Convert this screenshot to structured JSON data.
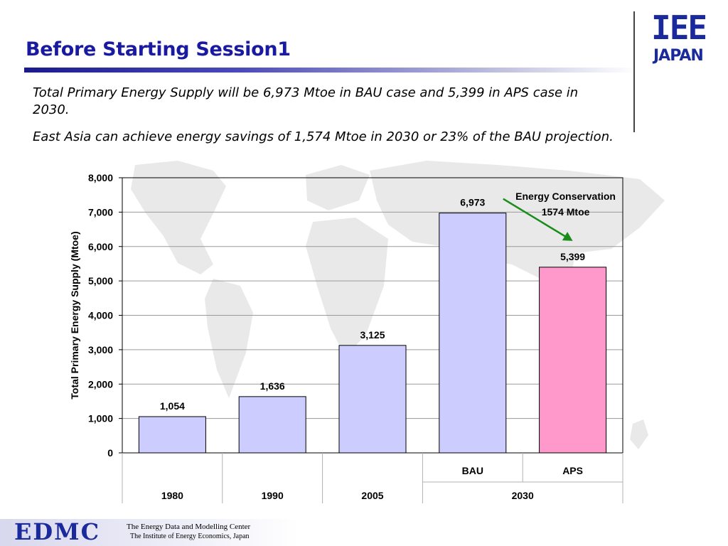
{
  "slide": {
    "title": "Before Starting Session1",
    "paragraph1": "Total Primary Energy Supply will be 6,973 Mtoe in BAU case and 5,399 in APS case in 2030.",
    "paragraph2": "East Asia can achieve energy savings of 1,574 Mtoe in 2030 or 23% of the BAU projection."
  },
  "logo": {
    "main": "IEE",
    "sub": "JAPAN"
  },
  "footer": {
    "org_short": "EDMC",
    "line1": "The Energy Data and Modelling Center",
    "line2": "The Institute of Energy Economics, Japan"
  },
  "colors": {
    "title": "#1a1aa0",
    "bar_default": "#ccccff",
    "bar_aps": "#ff99cc",
    "arrow": "#1a8c1a"
  },
  "chart_data": {
    "type": "bar",
    "categories": [
      "1980",
      "1990",
      "2005",
      "BAU",
      "APS"
    ],
    "groups": [
      {
        "label": "1980",
        "span": 1
      },
      {
        "label": "1990",
        "span": 1
      },
      {
        "label": "2005",
        "span": 1
      },
      {
        "label": "2030",
        "span": 2
      }
    ],
    "subcategories": [
      "",
      "",
      "",
      "BAU",
      "APS"
    ],
    "values": [
      1054,
      1636,
      3125,
      6973,
      5399
    ],
    "value_labels": [
      "1,054",
      "1,636",
      "3,125",
      "6,973",
      "5,399"
    ],
    "bar_colors": [
      "#ccccff",
      "#ccccff",
      "#ccccff",
      "#ccccff",
      "#ff99cc"
    ],
    "ylabel": "Total Primary Energy Supply (Mtoe)",
    "ylim": [
      0,
      8000
    ],
    "yticks": [
      0,
      1000,
      2000,
      3000,
      4000,
      5000,
      6000,
      7000,
      8000
    ],
    "ytick_labels": [
      "0",
      "1,000",
      "2,000",
      "3,000",
      "4,000",
      "5,000",
      "6,000",
      "7,000",
      "8,000"
    ],
    "grid": true,
    "annotation": {
      "line1": "Energy Conservation",
      "line2": "1574 Mtoe",
      "arrow_from_category": "BAU",
      "arrow_to_category": "APS"
    }
  }
}
